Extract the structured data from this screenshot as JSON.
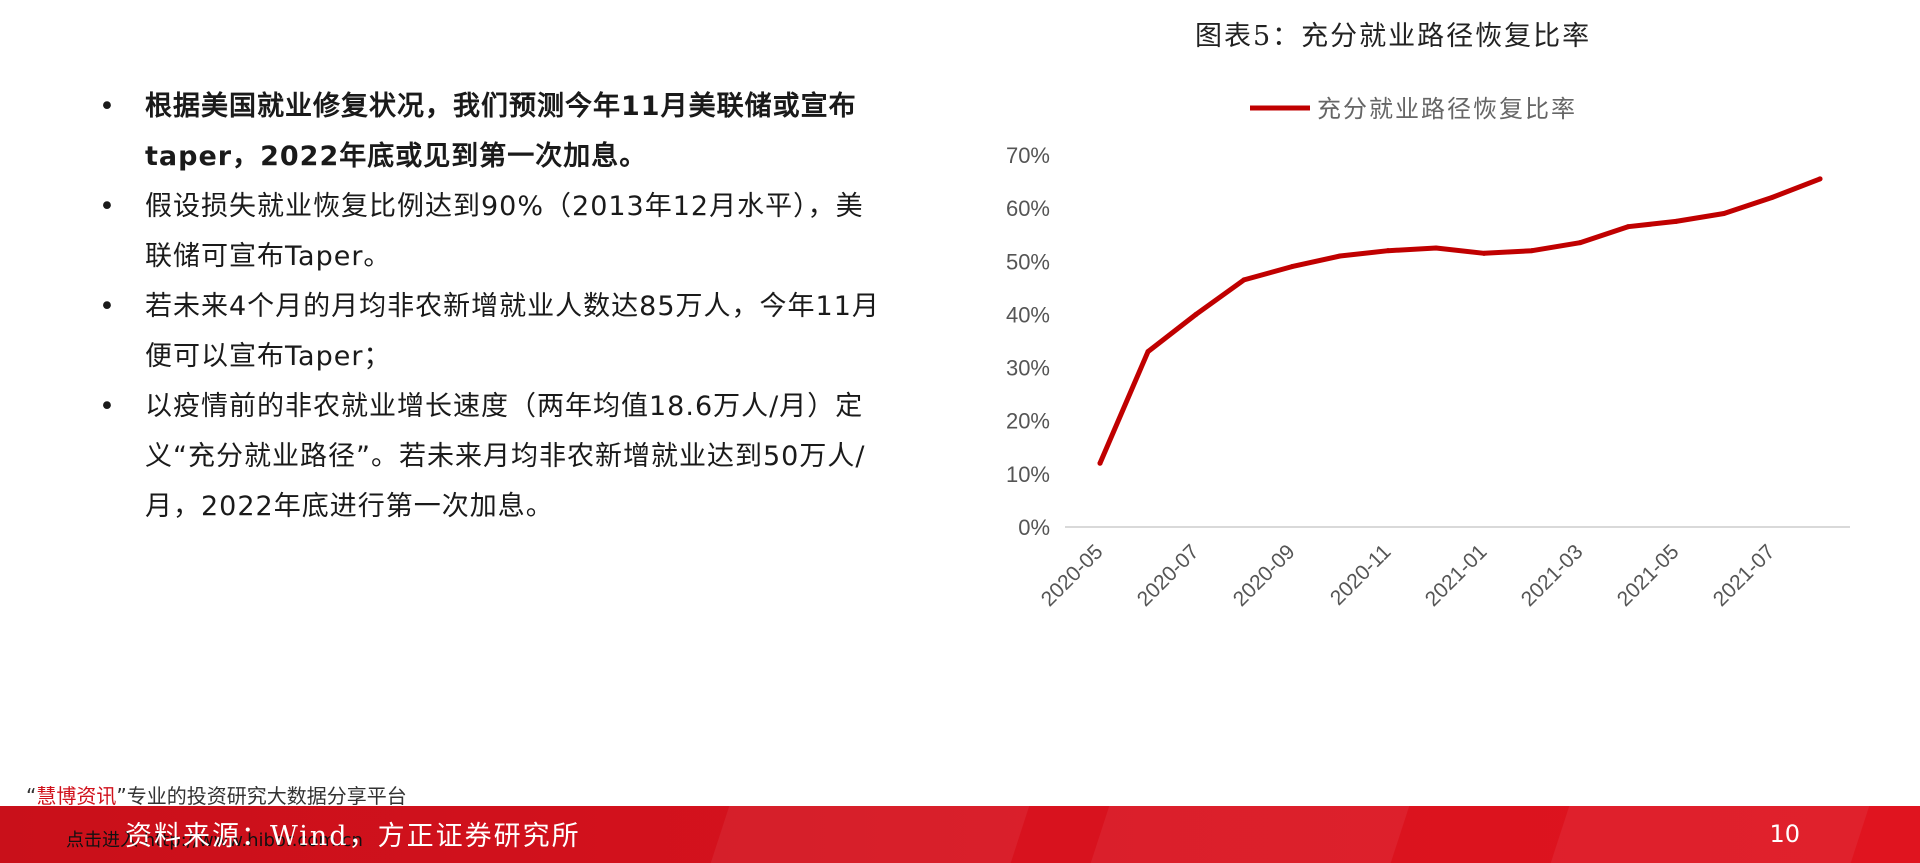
{
  "bullets": [
    {
      "text": "根据美国就业修复状况，我们预测今年11月美联储或宣布taper，2022年底或见到第一次加息。",
      "bold": true
    },
    {
      "text": "假设损失就业恢复比例达到90%（2013年12月水平），美联储可宣布Taper。",
      "bold": false
    },
    {
      "text": "若未来4个月的月均非农新增就业人数达85万人，今年11月便可以宣布Taper；",
      "bold": false
    },
    {
      "text": "以疫情前的非农就业增长速度（两年均值18.6万人/月）定义“充分就业路径”。若未来月均非农新增就业达到50万人/月，2022年底进行第一次加息。",
      "bold": false
    }
  ],
  "bullet_symbol": "•",
  "chart_title": "图表5：充分就业路径恢复比率",
  "chart_data": {
    "type": "line",
    "series": [
      {
        "name": "充分就业路径恢复比率",
        "color": "#c00000",
        "values": [
          0.12,
          0.33,
          0.4,
          0.465,
          0.49,
          0.51,
          0.52,
          0.525,
          0.515,
          0.52,
          0.535,
          0.565,
          0.575,
          0.59,
          0.62,
          0.655
        ]
      }
    ],
    "x_ticks": [
      "2020-05",
      "2020-07",
      "2020-09",
      "2020-11",
      "2021-01",
      "2021-03",
      "2021-05",
      "2021-07"
    ],
    "y_ticks": [
      "0%",
      "10%",
      "20%",
      "30%",
      "40%",
      "50%",
      "60%",
      "70%"
    ],
    "ylim": [
      0,
      0.7
    ],
    "legend": "top",
    "grid": false
  },
  "footer": {
    "watermark_prefix": "“",
    "watermark_brand": "慧博资讯",
    "watermark_rest": "”专业的投资研究大数据分享平台",
    "click_text": "点击进入 http://www.hibor.com.cn",
    "source": "资料来源：Wind，方正证券研究所",
    "page_number": "10"
  }
}
